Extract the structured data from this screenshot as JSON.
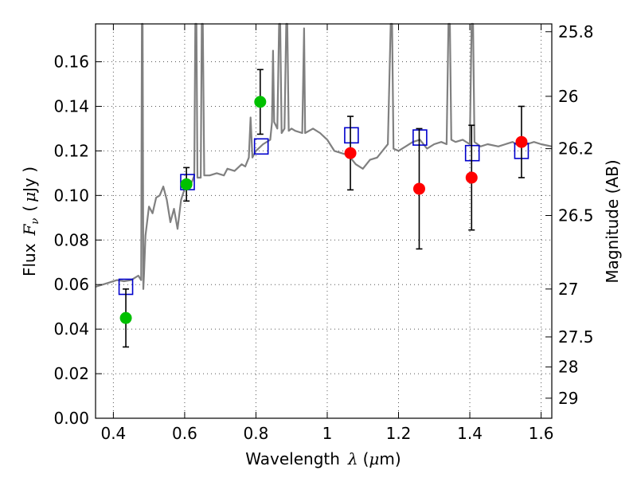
{
  "chart_data": {
    "type": "scatter",
    "xlabel_text": "Wavelength",
    "xlabel_symbol": "λ",
    "xlabel_unit_open": "(",
    "xlabel_unit_mu": "μ",
    "xlabel_unit_rest": "m)",
    "ylabel_text": "Flux",
    "ylabel_symbol": "F",
    "ylabel_subscript": "ν",
    "ylabel_unit_open": "(",
    "ylabel_unit_mu": "μ",
    "ylabel_unit_rest": "Jy )",
    "ylabel_right": "Magnitude (AB)",
    "xlim": [
      0.35,
      1.63
    ],
    "ylim": [
      0.0,
      0.177
    ],
    "xticks": [
      {
        "value": 0.4,
        "label": "0.4"
      },
      {
        "value": 0.6,
        "label": "0.6"
      },
      {
        "value": 0.8,
        "label": "0.8"
      },
      {
        "value": 1.0,
        "label": "1"
      },
      {
        "value": 1.2,
        "label": "1.2"
      },
      {
        "value": 1.4,
        "label": "1.4"
      },
      {
        "value": 1.6,
        "label": "1.6"
      }
    ],
    "yticks": [
      {
        "value": 0.0,
        "label": "0.00"
      },
      {
        "value": 0.02,
        "label": "0.02"
      },
      {
        "value": 0.04,
        "label": "0.04"
      },
      {
        "value": 0.06,
        "label": "0.06"
      },
      {
        "value": 0.08,
        "label": "0.08"
      },
      {
        "value": 0.1,
        "label": "0.10"
      },
      {
        "value": 0.12,
        "label": "0.12"
      },
      {
        "value": 0.14,
        "label": "0.14"
      },
      {
        "value": 0.16,
        "label": "0.16"
      }
    ],
    "right_ticks": [
      {
        "flux": 0.1735,
        "label": "25.8"
      },
      {
        "flux": 0.1445,
        "label": "26"
      },
      {
        "flux": 0.121,
        "label": "26.2"
      },
      {
        "flux": 0.091,
        "label": "26.5"
      },
      {
        "flux": 0.058,
        "label": "27"
      },
      {
        "flux": 0.0365,
        "label": "27.5"
      },
      {
        "flux": 0.023,
        "label": "28"
      },
      {
        "flux": 0.009,
        "label": "29"
      }
    ],
    "colors": {
      "model": "#808080",
      "green": "#00c000",
      "red": "#ff0000",
      "box": "#0000cc",
      "errorbar": "#000000",
      "grid": "#555555"
    },
    "series": [
      {
        "name": "model_spectrum",
        "style": "line",
        "points": [
          [
            0.35,
            0.059
          ],
          [
            0.37,
            0.06
          ],
          [
            0.39,
            0.061
          ],
          [
            0.41,
            0.062
          ],
          [
            0.43,
            0.0615
          ],
          [
            0.45,
            0.062
          ],
          [
            0.46,
            0.063
          ],
          [
            0.47,
            0.064
          ],
          [
            0.478,
            0.062
          ],
          [
            0.48,
            0.177
          ],
          [
            0.482,
            0.177
          ],
          [
            0.484,
            0.058
          ],
          [
            0.486,
            0.065
          ],
          [
            0.49,
            0.082
          ],
          [
            0.5,
            0.095
          ],
          [
            0.51,
            0.092
          ],
          [
            0.52,
            0.099
          ],
          [
            0.53,
            0.1
          ],
          [
            0.54,
            0.104
          ],
          [
            0.55,
            0.098
          ],
          [
            0.56,
            0.088
          ],
          [
            0.57,
            0.094
          ],
          [
            0.58,
            0.085
          ],
          [
            0.59,
            0.098
          ],
          [
            0.6,
            0.103
          ],
          [
            0.61,
            0.107
          ],
          [
            0.62,
            0.106
          ],
          [
            0.627,
            0.109
          ],
          [
            0.63,
            0.177
          ],
          [
            0.633,
            0.177
          ],
          [
            0.636,
            0.108
          ],
          [
            0.645,
            0.108
          ],
          [
            0.648,
            0.177
          ],
          [
            0.651,
            0.177
          ],
          [
            0.655,
            0.109
          ],
          [
            0.67,
            0.109
          ],
          [
            0.69,
            0.11
          ],
          [
            0.71,
            0.109
          ],
          [
            0.72,
            0.112
          ],
          [
            0.74,
            0.111
          ],
          [
            0.76,
            0.114
          ],
          [
            0.77,
            0.113
          ],
          [
            0.78,
            0.117
          ],
          [
            0.785,
            0.135
          ],
          [
            0.79,
            0.117
          ],
          [
            0.8,
            0.12
          ],
          [
            0.82,
            0.123
          ],
          [
            0.84,
            0.125
          ],
          [
            0.845,
            0.133
          ],
          [
            0.848,
            0.165
          ],
          [
            0.851,
            0.133
          ],
          [
            0.86,
            0.13
          ],
          [
            0.865,
            0.177
          ],
          [
            0.868,
            0.177
          ],
          [
            0.872,
            0.128
          ],
          [
            0.88,
            0.13
          ],
          [
            0.885,
            0.177
          ],
          [
            0.888,
            0.177
          ],
          [
            0.892,
            0.129
          ],
          [
            0.9,
            0.13
          ],
          [
            0.91,
            0.129
          ],
          [
            0.93,
            0.128
          ],
          [
            0.935,
            0.175
          ],
          [
            0.938,
            0.128
          ],
          [
            0.96,
            0.13
          ],
          [
            0.98,
            0.128
          ],
          [
            1.0,
            0.125
          ],
          [
            1.02,
            0.12
          ],
          [
            1.04,
            0.119
          ],
          [
            1.06,
            0.118
          ],
          [
            1.08,
            0.114
          ],
          [
            1.1,
            0.112
          ],
          [
            1.12,
            0.116
          ],
          [
            1.14,
            0.117
          ],
          [
            1.16,
            0.121
          ],
          [
            1.17,
            0.123
          ],
          [
            1.178,
            0.177
          ],
          [
            1.182,
            0.177
          ],
          [
            1.186,
            0.121
          ],
          [
            1.2,
            0.12
          ],
          [
            1.22,
            0.122
          ],
          [
            1.24,
            0.124
          ],
          [
            1.26,
            0.125
          ],
          [
            1.28,
            0.121
          ],
          [
            1.3,
            0.123
          ],
          [
            1.32,
            0.124
          ],
          [
            1.335,
            0.123
          ],
          [
            1.34,
            0.177
          ],
          [
            1.344,
            0.177
          ],
          [
            1.348,
            0.125
          ],
          [
            1.36,
            0.124
          ],
          [
            1.38,
            0.125
          ],
          [
            1.4,
            0.123
          ],
          [
            1.405,
            0.177
          ],
          [
            1.409,
            0.177
          ],
          [
            1.413,
            0.124
          ],
          [
            1.43,
            0.122
          ],
          [
            1.45,
            0.123
          ],
          [
            1.48,
            0.122
          ],
          [
            1.5,
            0.123
          ],
          [
            1.52,
            0.124
          ],
          [
            1.54,
            0.122
          ],
          [
            1.56,
            0.123
          ],
          [
            1.58,
            0.124
          ],
          [
            1.6,
            0.123
          ],
          [
            1.63,
            0.122
          ]
        ]
      },
      {
        "name": "observed_green",
        "style": "marker",
        "points": [
          {
            "x": 0.435,
            "y": 0.045,
            "err": 0.013
          },
          {
            "x": 0.605,
            "y": 0.105,
            "err": 0.0075
          },
          {
            "x": 0.812,
            "y": 0.142,
            "err": 0.0145
          }
        ]
      },
      {
        "name": "observed_red",
        "style": "marker",
        "points": [
          {
            "x": 1.065,
            "y": 0.119,
            "err": 0.0165
          },
          {
            "x": 1.258,
            "y": 0.103,
            "err": 0.027
          },
          {
            "x": 1.405,
            "y": 0.108,
            "err": 0.0235
          },
          {
            "x": 1.545,
            "y": 0.124,
            "err": 0.016
          }
        ]
      },
      {
        "name": "model_photometry",
        "style": "box",
        "points": [
          {
            "x": 0.435,
            "y": 0.059
          },
          {
            "x": 0.608,
            "y": 0.106
          },
          {
            "x": 0.815,
            "y": 0.122
          },
          {
            "x": 1.068,
            "y": 0.127
          },
          {
            "x": 1.26,
            "y": 0.126
          },
          {
            "x": 1.407,
            "y": 0.119
          },
          {
            "x": 1.545,
            "y": 0.12
          }
        ]
      }
    ]
  }
}
